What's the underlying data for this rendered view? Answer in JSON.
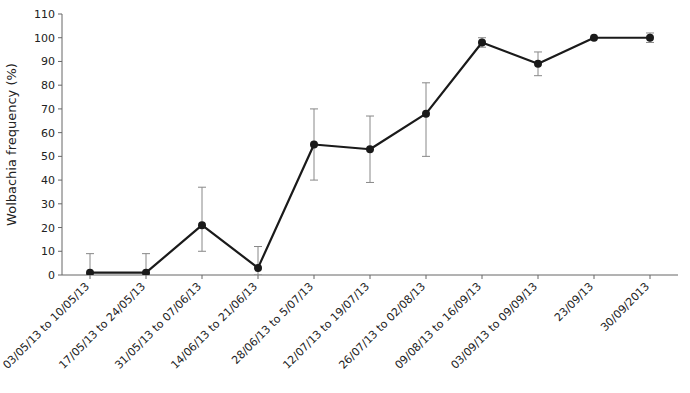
{
  "chart_data": {
    "type": "line",
    "categories": [
      "03/05/13 to 10/05/13",
      "17/05/13 to 24/05/13",
      "31/05/13 to 07/06/13",
      "14/06/13 to 21/06/13",
      "28/06/13 to 5/07/13",
      "12/07/13 to 19/07/13",
      "26/07/13 to 02/08/13",
      "09/08/13 to 16/09/13",
      "03/09/13 to 09/09/13",
      "23/09/13",
      "30/09/2013"
    ],
    "values": [
      1,
      1,
      21,
      3,
      55,
      53,
      68,
      98,
      89,
      100,
      100
    ],
    "errors_lower": [
      1,
      1,
      11,
      3,
      15,
      14,
      18,
      2,
      5,
      0,
      2
    ],
    "errors_upper": [
      8,
      8,
      16,
      9,
      15,
      14,
      13,
      2,
      5,
      0,
      2
    ],
    "y_label": "Wolbachia frequency (%)",
    "ylim": [
      0,
      110
    ],
    "yticks": [
      0,
      10,
      20,
      30,
      40,
      50,
      60,
      70,
      80,
      90,
      100,
      110
    ],
    "color": "#1a1a1a",
    "marker": "circle",
    "grid": false
  }
}
